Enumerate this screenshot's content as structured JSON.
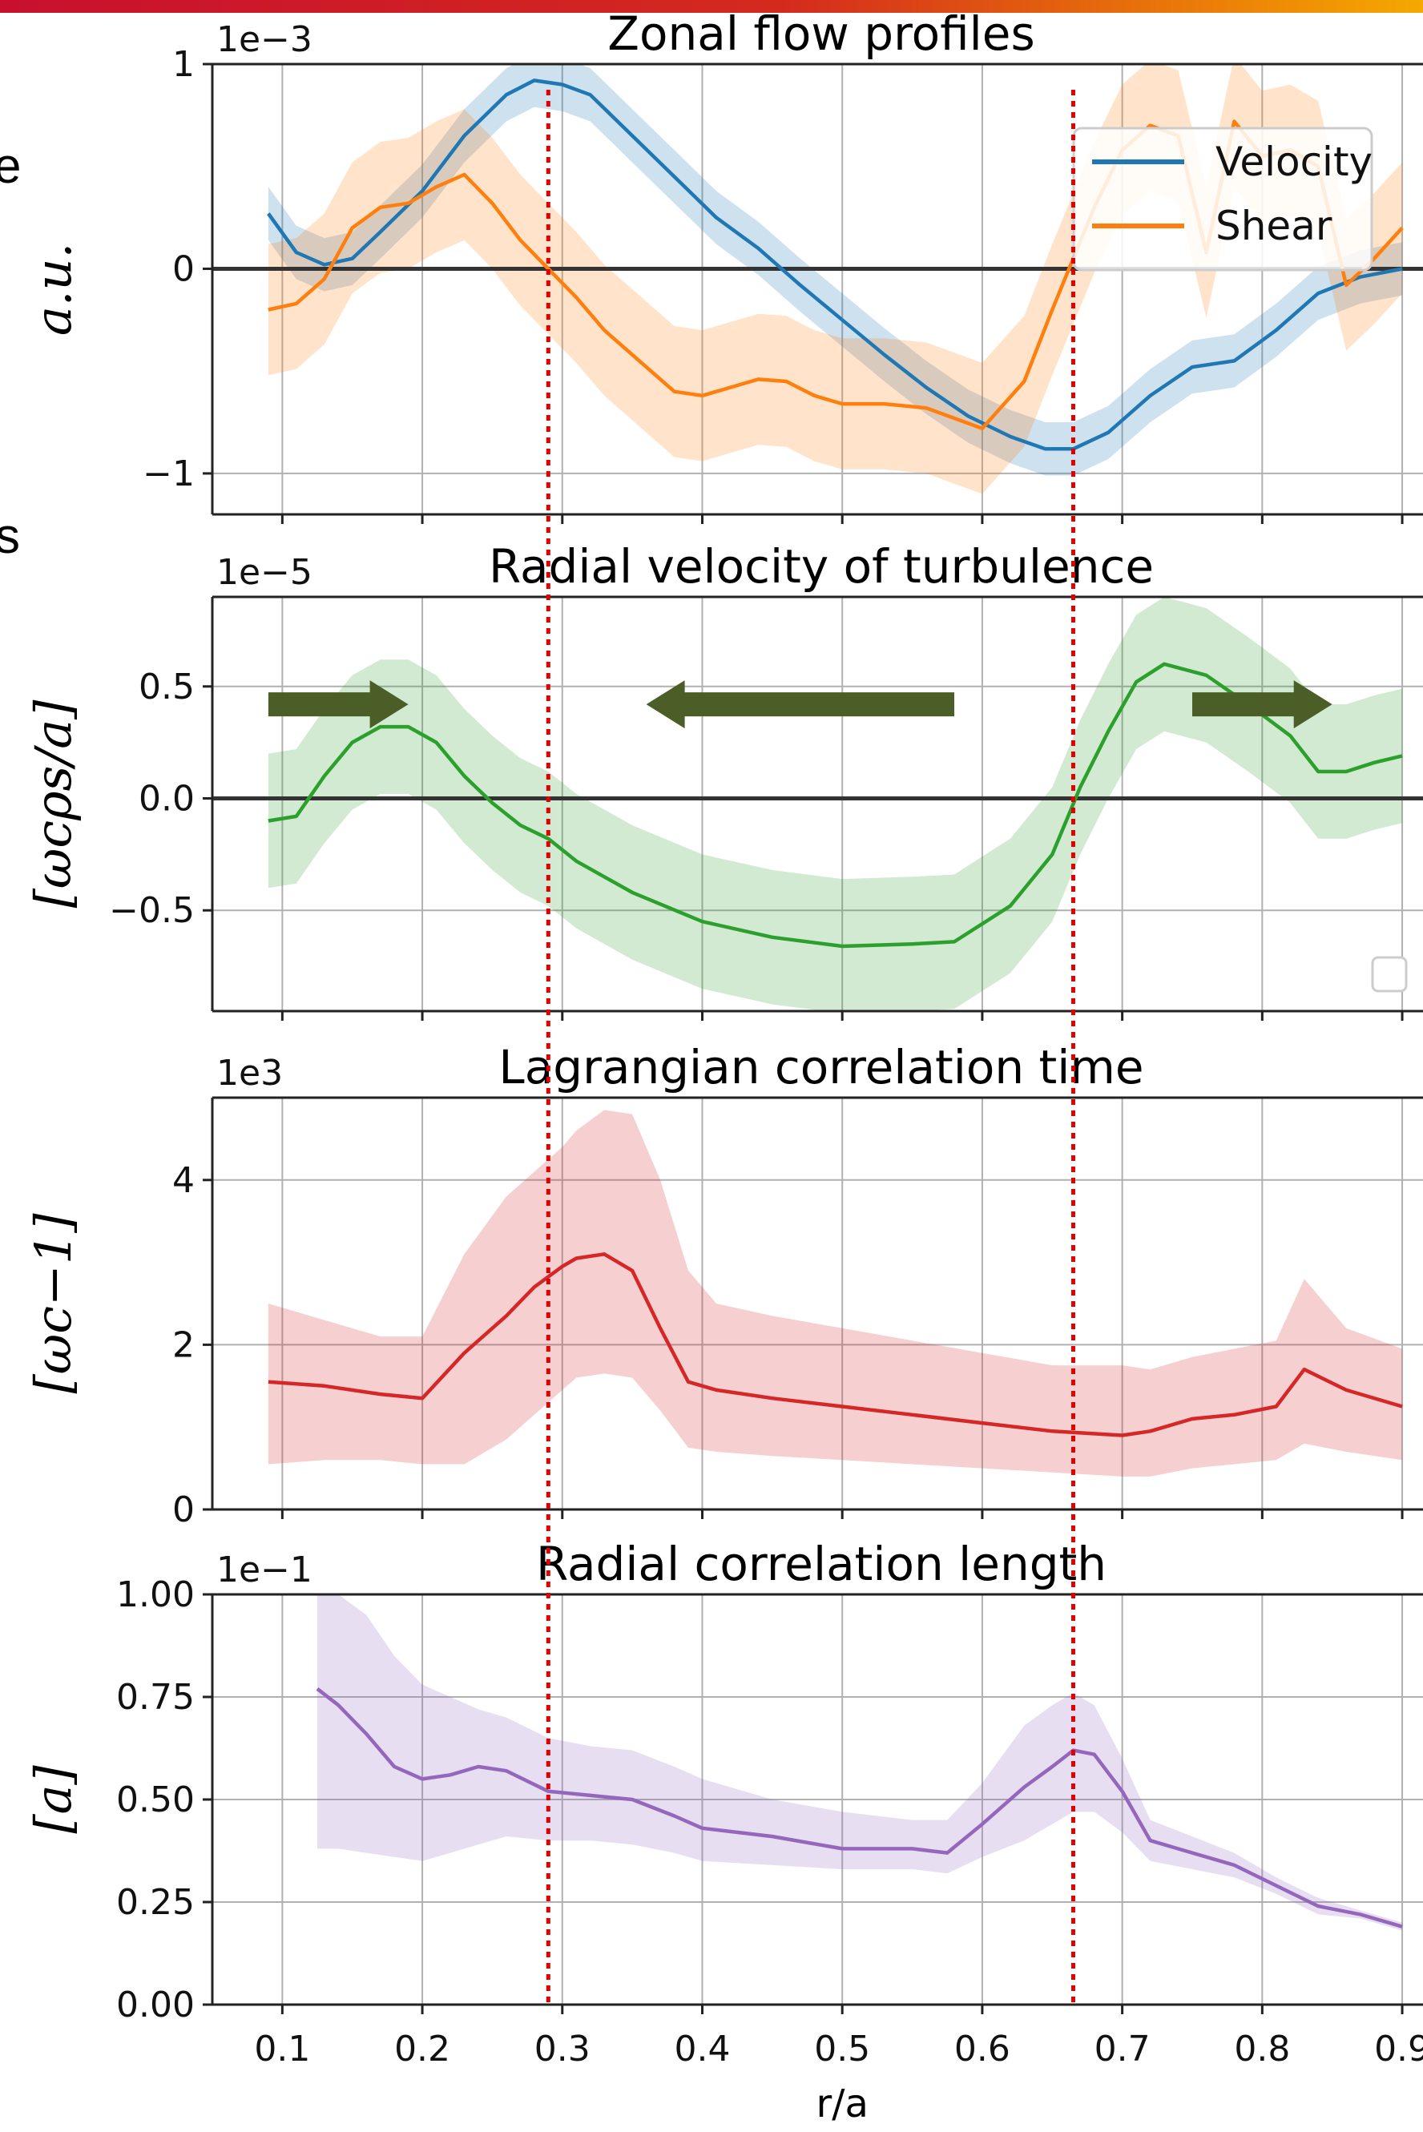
{
  "chart_data": [
    {
      "type": "line",
      "title": "Zonal flow profiles",
      "ylabel": "a.u.",
      "exponent": "1e−3",
      "ylim": [
        -1.2,
        1.0
      ],
      "yticks": [
        -1,
        0,
        1
      ],
      "ytick_labels": [
        "−1",
        "0",
        "1"
      ],
      "hline": 0,
      "legend": "top-right",
      "series": [
        {
          "name": "Velocity",
          "color": "#1f77b4",
          "x": [
            0.09,
            0.11,
            0.13,
            0.15,
            0.17,
            0.2,
            0.23,
            0.26,
            0.28,
            0.3,
            0.32,
            0.35,
            0.38,
            0.41,
            0.44,
            0.47,
            0.5,
            0.53,
            0.56,
            0.59,
            0.62,
            0.645,
            0.665,
            0.69,
            0.72,
            0.75,
            0.78,
            0.81,
            0.84,
            0.87,
            0.9
          ],
          "y": [
            0.27,
            0.08,
            0.02,
            0.05,
            0.18,
            0.38,
            0.65,
            0.85,
            0.92,
            0.9,
            0.85,
            0.65,
            0.45,
            0.25,
            0.1,
            -0.08,
            -0.25,
            -0.42,
            -0.58,
            -0.72,
            -0.82,
            -0.88,
            -0.88,
            -0.8,
            -0.62,
            -0.48,
            -0.45,
            -0.3,
            -0.12,
            -0.04,
            0.0
          ],
          "band": 0.13
        },
        {
          "name": "Shear",
          "color": "#ff7f0e",
          "x": [
            0.09,
            0.11,
            0.13,
            0.15,
            0.17,
            0.19,
            0.21,
            0.23,
            0.25,
            0.27,
            0.29,
            0.31,
            0.33,
            0.36,
            0.38,
            0.4,
            0.42,
            0.44,
            0.46,
            0.48,
            0.5,
            0.53,
            0.56,
            0.6,
            0.63,
            0.65,
            0.665,
            0.68,
            0.7,
            0.72,
            0.74,
            0.76,
            0.78,
            0.8,
            0.82,
            0.84,
            0.86,
            0.88,
            0.9
          ],
          "y": [
            -0.2,
            -0.17,
            -0.05,
            0.2,
            0.3,
            0.32,
            0.4,
            0.46,
            0.32,
            0.14,
            0.0,
            -0.14,
            -0.3,
            -0.48,
            -0.6,
            -0.62,
            -0.58,
            -0.54,
            -0.55,
            -0.62,
            -0.66,
            -0.66,
            -0.68,
            -0.78,
            -0.55,
            -0.2,
            0.05,
            0.3,
            0.58,
            0.7,
            0.65,
            0.08,
            0.72,
            0.55,
            0.58,
            0.5,
            -0.08,
            0.05,
            0.2
          ],
          "band": 0.32
        }
      ]
    },
    {
      "type": "line",
      "title": "Radial velocity of turbulence",
      "ylabel": "[ωcρs/a]",
      "exponent": "1e−5",
      "ylim": [
        -0.95,
        0.9
      ],
      "yticks": [
        -0.5,
        0.0,
        0.5
      ],
      "ytick_labels": [
        "−0.5",
        "0.0",
        "0.5"
      ],
      "hline": 0,
      "legend": "top-right",
      "series": [
        {
          "color": "#2ca02c",
          "x": [
            0.09,
            0.11,
            0.13,
            0.15,
            0.17,
            0.19,
            0.21,
            0.23,
            0.25,
            0.27,
            0.29,
            0.31,
            0.35,
            0.4,
            0.45,
            0.5,
            0.55,
            0.58,
            0.62,
            0.65,
            0.67,
            0.69,
            0.71,
            0.73,
            0.76,
            0.79,
            0.82,
            0.84,
            0.86,
            0.88,
            0.9
          ],
          "y": [
            -0.1,
            -0.08,
            0.1,
            0.25,
            0.32,
            0.32,
            0.25,
            0.1,
            -0.02,
            -0.12,
            -0.18,
            -0.28,
            -0.42,
            -0.55,
            -0.62,
            -0.66,
            -0.65,
            -0.64,
            -0.48,
            -0.25,
            0.05,
            0.3,
            0.52,
            0.6,
            0.55,
            0.42,
            0.28,
            0.12,
            0.12,
            0.16,
            0.19
          ],
          "band": 0.3
        }
      ],
      "arrows": [
        {
          "from": 0.09,
          "to": 0.19,
          "y": 0.42
        },
        {
          "from": 0.58,
          "to": 0.36,
          "y": 0.42
        },
        {
          "from": 0.75,
          "to": 0.85,
          "y": 0.42
        }
      ]
    },
    {
      "type": "line",
      "title": "Lagrangian correlation time",
      "ylabel": "[ωc−1]",
      "exponent": "1e3",
      "ylim": [
        0,
        5.0
      ],
      "yticks": [
        0,
        2,
        4
      ],
      "ytick_labels": [
        "0",
        "2",
        "4"
      ],
      "series": [
        {
          "color": "#d62728",
          "x": [
            0.09,
            0.13,
            0.17,
            0.2,
            0.23,
            0.26,
            0.28,
            0.3,
            0.31,
            0.33,
            0.35,
            0.37,
            0.39,
            0.41,
            0.45,
            0.5,
            0.55,
            0.6,
            0.65,
            0.7,
            0.72,
            0.75,
            0.78,
            0.81,
            0.83,
            0.86,
            0.9
          ],
          "y": [
            1.55,
            1.5,
            1.4,
            1.35,
            1.9,
            2.35,
            2.7,
            2.95,
            3.05,
            3.1,
            2.9,
            2.2,
            1.55,
            1.45,
            1.35,
            1.25,
            1.15,
            1.05,
            0.95,
            0.9,
            0.95,
            1.1,
            1.15,
            1.25,
            1.7,
            1.45,
            1.25
          ],
          "upper": [
            2.5,
            2.3,
            2.1,
            2.1,
            3.1,
            3.8,
            4.1,
            4.4,
            4.6,
            4.85,
            4.8,
            4.0,
            2.9,
            2.5,
            2.35,
            2.2,
            2.05,
            1.9,
            1.75,
            1.75,
            1.7,
            1.85,
            1.95,
            2.05,
            2.8,
            2.2,
            1.95
          ],
          "lower": [
            0.55,
            0.6,
            0.6,
            0.55,
            0.55,
            0.85,
            1.15,
            1.45,
            1.6,
            1.65,
            1.6,
            1.2,
            0.75,
            0.7,
            0.65,
            0.6,
            0.55,
            0.5,
            0.45,
            0.4,
            0.4,
            0.5,
            0.55,
            0.6,
            0.8,
            0.7,
            0.6
          ]
        }
      ]
    },
    {
      "type": "line",
      "title": "Radial correlation length",
      "ylabel": "[a]",
      "exponent": "1e−1",
      "xlabel": "r/a",
      "ylim": [
        0,
        1.0
      ],
      "yticks": [
        0.0,
        0.25,
        0.5,
        0.75,
        1.0
      ],
      "ytick_labels": [
        "0.00",
        "0.25",
        "0.50",
        "0.75",
        "1.00"
      ],
      "xticks": [
        0.1,
        0.2,
        0.3,
        0.4,
        0.5,
        0.6,
        0.7,
        0.8,
        0.9
      ],
      "xtick_labels": [
        "0.1",
        "0.2",
        "0.3",
        "0.4",
        "0.5",
        "0.6",
        "0.7",
        "0.8",
        "0.9"
      ],
      "series": [
        {
          "color": "#9467bd",
          "x": [
            0.125,
            0.14,
            0.16,
            0.18,
            0.2,
            0.22,
            0.24,
            0.26,
            0.29,
            0.32,
            0.35,
            0.38,
            0.4,
            0.45,
            0.5,
            0.55,
            0.575,
            0.6,
            0.63,
            0.65,
            0.665,
            0.68,
            0.7,
            0.72,
            0.75,
            0.78,
            0.81,
            0.84,
            0.87,
            0.9
          ],
          "y": [
            0.77,
            0.73,
            0.66,
            0.58,
            0.55,
            0.56,
            0.58,
            0.57,
            0.52,
            0.51,
            0.5,
            0.46,
            0.43,
            0.41,
            0.38,
            0.38,
            0.37,
            0.44,
            0.53,
            0.58,
            0.62,
            0.61,
            0.52,
            0.4,
            0.37,
            0.34,
            0.29,
            0.24,
            0.22,
            0.19
          ],
          "upper": [
            1.0,
            1.0,
            0.95,
            0.85,
            0.78,
            0.75,
            0.72,
            0.7,
            0.65,
            0.63,
            0.62,
            0.58,
            0.55,
            0.5,
            0.47,
            0.45,
            0.45,
            0.54,
            0.68,
            0.73,
            0.76,
            0.73,
            0.6,
            0.45,
            0.41,
            0.37,
            0.31,
            0.26,
            0.23,
            0.2
          ],
          "lower": [
            0.38,
            0.38,
            0.37,
            0.36,
            0.35,
            0.37,
            0.39,
            0.41,
            0.4,
            0.4,
            0.39,
            0.37,
            0.35,
            0.34,
            0.33,
            0.33,
            0.32,
            0.36,
            0.4,
            0.44,
            0.47,
            0.47,
            0.42,
            0.35,
            0.33,
            0.31,
            0.27,
            0.22,
            0.21,
            0.18
          ]
        }
      ]
    }
  ],
  "vlines": [
    0.29,
    0.665
  ],
  "xlim": [
    0.05,
    0.92
  ],
  "legend_box": true,
  "edge_fragments": [
    "e",
    "s"
  ]
}
